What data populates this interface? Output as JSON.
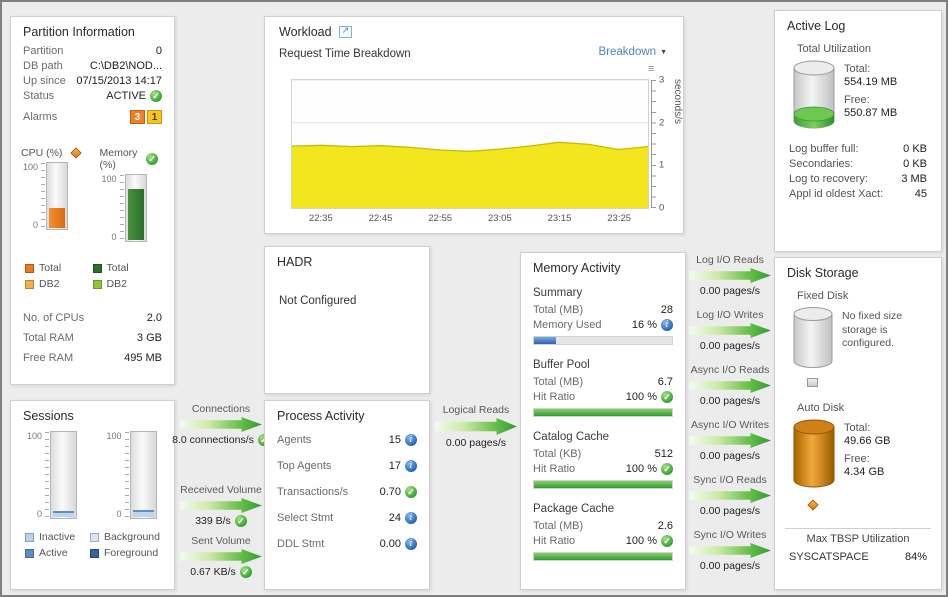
{
  "scale": {
    "max": "100",
    "min": "0"
  },
  "colors": {
    "ok_green": "#2f9e2f",
    "info_blue": "#1f62b5",
    "warning_orange": "#e87a1e",
    "caution_yellow": "#f6c61d",
    "link_blue": "#4a86c8",
    "area_yellow": "#f2e71d"
  },
  "partition": {
    "title": "Partition Information",
    "rows": [
      {
        "label": "Partition",
        "value": "0"
      },
      {
        "label": "DB path",
        "value": "C:\\DB2\\NOD..."
      },
      {
        "label": "Up since",
        "value": "07/15/2013 14:17"
      },
      {
        "label": "Status",
        "value": "ACTIVE"
      }
    ],
    "alarms_label": "Alarms",
    "alarm_warning": "3",
    "alarm_caution": "1",
    "cpu_label": "CPU (%)",
    "memory_label": "Memory (%)",
    "cpu_fill_pct": 30,
    "memory_fill_pct": 77,
    "cpu_legend": [
      "Total",
      "DB2"
    ],
    "memory_legend": [
      "Total",
      "DB2"
    ],
    "stats": [
      {
        "label": "No. of CPUs",
        "value": "2.0"
      },
      {
        "label": "Total RAM",
        "value": "3 GB"
      },
      {
        "label": "Free RAM",
        "value": "495 MB"
      }
    ]
  },
  "sessions": {
    "title": "Sessions",
    "gauge1_fill_pct": 7,
    "gauge2_fill_pct": 8,
    "legend": [
      "Inactive",
      "Active",
      "Background",
      "Foreground"
    ]
  },
  "flows": {
    "connections": {
      "label": "Connections",
      "value": "8.0 connections/s"
    },
    "received": {
      "label": "Received Volume",
      "value": "339 B/s"
    },
    "sent": {
      "label": "Sent Volume",
      "value": "0.67 KB/s"
    },
    "logical_reads": {
      "label": "Logical Reads",
      "value": "0.00 pages/s"
    },
    "io": [
      {
        "label": "Log I/O Reads",
        "value": "0.00 pages/s"
      },
      {
        "label": "Log I/O Writes",
        "value": "0.00 pages/s"
      },
      {
        "label": "Async I/O Reads",
        "value": "0.00 pages/s"
      },
      {
        "label": "Async I/O Writes",
        "value": "0.00 pages/s"
      },
      {
        "label": "Sync I/O Reads",
        "value": "0.00 pages/s"
      },
      {
        "label": "Sync I/O Writes",
        "value": "0.00 pages/s"
      }
    ]
  },
  "workload": {
    "title": "Workload",
    "subtitle": "Request Time Breakdown",
    "dropdown_label": "Breakdown",
    "chart_data": {
      "type": "area",
      "x_range": [
        "22:30",
        "23:30"
      ],
      "x_ticks": [
        "22:35",
        "22:45",
        "22:55",
        "23:05",
        "23:15",
        "23:25"
      ],
      "series": [
        {
          "name": "Request Time Breakdown",
          "values": [
            1.45,
            1.47,
            1.44,
            1.46,
            1.42,
            1.36,
            1.33,
            1.38,
            1.45,
            1.54,
            1.49,
            1.37,
            1.44
          ]
        }
      ],
      "ylabel": "seconds/s",
      "ylim": [
        0,
        3
      ],
      "yticks": [
        0,
        1,
        2,
        3
      ],
      "grid": "horizontal",
      "area_color": "#f2e71d",
      "line_color": "#c9ba00"
    }
  },
  "hadr": {
    "title": "HADR",
    "status": "Not Configured"
  },
  "process": {
    "title": "Process Activity",
    "rows": [
      {
        "label": "Agents",
        "value": "15",
        "icon": "info"
      },
      {
        "label": "Top Agents",
        "value": "17",
        "icon": "info"
      },
      {
        "label": "Transactions/s",
        "value": "0.70",
        "icon": "ok"
      },
      {
        "label": "Select Stmt",
        "value": "24",
        "icon": "info"
      },
      {
        "label": "DDL Stmt",
        "value": "0.00",
        "icon": "info"
      }
    ]
  },
  "memory_activity": {
    "title": "Memory Activity",
    "sections": [
      {
        "heading": "Summary",
        "rows": [
          {
            "label": "Total (MB)",
            "value": "28"
          },
          {
            "label": "Memory Used",
            "value": "16 %",
            "icon": "info"
          }
        ],
        "bar_pct": 16
      },
      {
        "heading": "Buffer Pool",
        "rows": [
          {
            "label": "Total (MB)",
            "value": "6.7"
          },
          {
            "label": "Hit Ratio",
            "value": "100 %",
            "icon": "ok"
          }
        ],
        "bar_pct": 100
      },
      {
        "heading": "Catalog Cache",
        "rows": [
          {
            "label": "Total (KB)",
            "value": "512"
          },
          {
            "label": "Hit Ratio",
            "value": "100 %",
            "icon": "ok"
          }
        ],
        "bar_pct": 100
      },
      {
        "heading": "Package Cache",
        "rows": [
          {
            "label": "Total (MB)",
            "value": "2.6"
          },
          {
            "label": "Hit Ratio",
            "value": "100 %",
            "icon": "ok"
          }
        ],
        "bar_pct": 100
      }
    ]
  },
  "active_log": {
    "title": "Active Log",
    "utilization_label": "Total Utilization",
    "total_label": "Total:",
    "total_value": "554.19 MB",
    "free_label": "Free:",
    "free_value": "550.87 MB",
    "rows": [
      {
        "label": "Log buffer full:",
        "value": "0 KB"
      },
      {
        "label": "Secondaries:",
        "value": "0 KB"
      },
      {
        "label": "Log to recovery:",
        "value": "3 MB"
      },
      {
        "label": "Appl id oldest Xact:",
        "value": "45"
      }
    ]
  },
  "disk": {
    "title": "Disk Storage",
    "fixed_label": "Fixed Disk",
    "fixed_message": "No fixed size storage is configured.",
    "auto_label": "Auto Disk",
    "total_label": "Total:",
    "total_value": "49.66 GB",
    "free_label": "Free:",
    "free_value": "4.34 GB",
    "tbsp_heading": "Max TBSP Utilization",
    "tbsp_name": "SYSCATSPACE",
    "tbsp_value": "84%"
  }
}
